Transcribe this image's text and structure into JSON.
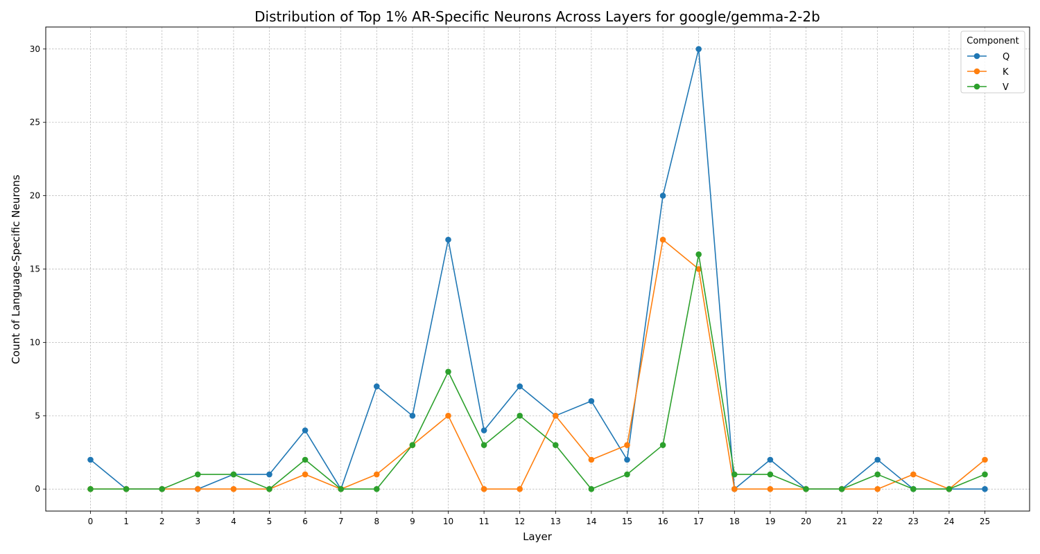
{
  "chart_data": {
    "type": "line",
    "title": "Distribution of Top 1% AR-Specific Neurons Across Layers for google/gemma-2-2b",
    "xlabel": "Layer",
    "ylabel": "Count of Language-Specific Neurons",
    "x": [
      0,
      1,
      2,
      3,
      4,
      5,
      6,
      7,
      8,
      9,
      10,
      11,
      12,
      13,
      14,
      15,
      16,
      17,
      18,
      19,
      20,
      21,
      22,
      23,
      24,
      25
    ],
    "xticks": [
      "0",
      "1",
      "2",
      "3",
      "4",
      "5",
      "6",
      "7",
      "8",
      "9",
      "10",
      "11",
      "12",
      "13",
      "14",
      "15",
      "16",
      "17",
      "18",
      "19",
      "20",
      "21",
      "22",
      "23",
      "24",
      "25"
    ],
    "yticks": [
      "0",
      "5",
      "10",
      "15",
      "20",
      "25",
      "30"
    ],
    "ylim": [
      -1.5,
      31.5
    ],
    "xlim": [
      -1.25,
      26.25
    ],
    "grid": true,
    "legend": {
      "title": "Component",
      "placement": "top-right"
    },
    "series": [
      {
        "name": "Q",
        "color": "#1f77b4",
        "values": [
          2,
          0,
          0,
          0,
          1,
          1,
          4,
          0,
          7,
          5,
          17,
          4,
          7,
          5,
          6,
          2,
          20,
          30,
          0,
          2,
          0,
          0,
          2,
          0,
          0,
          0
        ]
      },
      {
        "name": "K",
        "color": "#ff7f0e",
        "values": [
          0,
          0,
          0,
          0,
          0,
          0,
          1,
          0,
          1,
          3,
          5,
          0,
          0,
          5,
          2,
          3,
          17,
          15,
          0,
          0,
          0,
          0,
          0,
          1,
          0,
          2
        ]
      },
      {
        "name": "V",
        "color": "#2ca02c",
        "values": [
          0,
          0,
          0,
          1,
          1,
          0,
          2,
          0,
          0,
          3,
          8,
          3,
          5,
          3,
          0,
          1,
          3,
          16,
          1,
          1,
          0,
          0,
          1,
          0,
          0,
          1
        ]
      }
    ]
  }
}
